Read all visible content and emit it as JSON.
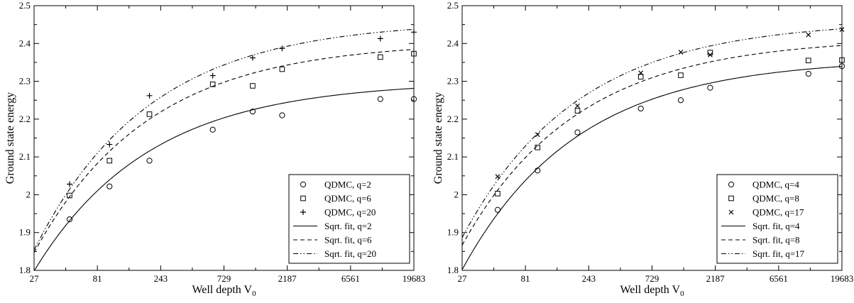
{
  "chart_data": [
    {
      "type": "scatter",
      "xscale": "log",
      "xlabel": "Well depth V",
      "xlabel_sub": "0",
      "ylabel": "Ground state energy",
      "xlim": [
        27,
        19683
      ],
      "ylim": [
        1.8,
        2.5
      ],
      "xticks": [
        27,
        81,
        243,
        729,
        2187,
        6561,
        19683
      ],
      "xtick_labels": [
        "27",
        "81",
        "243",
        "729",
        "2187",
        "6561",
        "19683"
      ],
      "yticks": [
        1.8,
        1.9,
        2.0,
        2.1,
        2.2,
        2.3,
        2.4,
        2.5
      ],
      "ytick_labels": [
        "1.8",
        "1.9",
        "2",
        "2.1",
        "2.2",
        "2.3",
        "2.4",
        "2.5"
      ],
      "legend_position": "lower-right",
      "series": [
        {
          "name": "QDMC, q=2",
          "marker": "circle",
          "x": [
            50,
            100,
            200,
            600,
            1200,
            2000,
            11000,
            19683
          ],
          "y": [
            1.935,
            2.022,
            2.09,
            2.172,
            2.22,
            2.21,
            2.253,
            2.253
          ]
        },
        {
          "name": "QDMC, q=6",
          "marker": "square",
          "x": [
            50,
            100,
            200,
            600,
            1200,
            2000,
            11000,
            19683
          ],
          "y": [
            1.998,
            2.09,
            2.213,
            2.292,
            2.288,
            2.332,
            2.364,
            2.373
          ]
        },
        {
          "name": "QDMC, q=20",
          "marker": "plus",
          "x": [
            50,
            100,
            200,
            600,
            1200,
            2000,
            11000,
            19683
          ],
          "y": [
            2.028,
            2.133,
            2.262,
            2.315,
            2.362,
            2.387,
            2.413,
            2.43
          ]
        }
      ],
      "fits": [
        {
          "name": "Sqrt. fit, q=2",
          "dash": "solid",
          "a": 2.3,
          "b": 2.607
        },
        {
          "name": "Sqrt. fit, q=6",
          "dash": "dashed",
          "a": 2.405,
          "b": 2.9
        },
        {
          "name": "Sqrt. fit, q=20",
          "dash": "dashdotdot",
          "a": 2.46,
          "b": 3.15
        }
      ]
    },
    {
      "type": "scatter",
      "xscale": "log",
      "xlabel": "Well depth V",
      "xlabel_sub": "0",
      "ylabel": "Ground state energy",
      "xlim": [
        27,
        19683
      ],
      "ylim": [
        1.8,
        2.5
      ],
      "xticks": [
        27,
        81,
        243,
        729,
        2187,
        6561,
        19683
      ],
      "xtick_labels": [
        "27",
        "81",
        "243",
        "729",
        "2187",
        "6561",
        "19683"
      ],
      "yticks": [
        1.8,
        1.9,
        2.0,
        2.1,
        2.2,
        2.3,
        2.4,
        2.5
      ],
      "ytick_labels": [
        "1.8",
        "1.9",
        "2",
        "2.1",
        "2.2",
        "2.3",
        "2.4",
        "2.5"
      ],
      "legend_position": "lower-right",
      "series": [
        {
          "name": "QDMC, q=4",
          "marker": "circle",
          "x": [
            50,
            100,
            200,
            600,
            1200,
            2000,
            11000,
            19683
          ],
          "y": [
            1.96,
            2.064,
            2.165,
            2.228,
            2.25,
            2.283,
            2.32,
            2.34
          ]
        },
        {
          "name": "QDMC, q=8",
          "marker": "square",
          "x": [
            50,
            100,
            200,
            600,
            1200,
            2000,
            11000,
            19683
          ],
          "y": [
            2.003,
            2.125,
            2.222,
            2.312,
            2.316,
            2.376,
            2.355,
            2.356
          ]
        },
        {
          "name": "QDMC, q=17",
          "marker": "x",
          "x": [
            50,
            100,
            200,
            600,
            1200,
            2000,
            11000,
            19683
          ],
          "y": [
            2.048,
            2.159,
            2.235,
            2.322,
            2.377,
            2.37,
            2.423,
            2.437
          ]
        }
      ],
      "fits": [
        {
          "name": "Sqrt. fit, q=4",
          "dash": "solid",
          "a": 2.36,
          "b": 2.9
        },
        {
          "name": "Sqrt. fit, q=8",
          "dash": "dashed",
          "a": 2.415,
          "b": 2.85
        },
        {
          "name": "Sqrt. fit, q=17",
          "dash": "dashdotdot",
          "a": 2.46,
          "b": 2.98
        }
      ]
    }
  ]
}
